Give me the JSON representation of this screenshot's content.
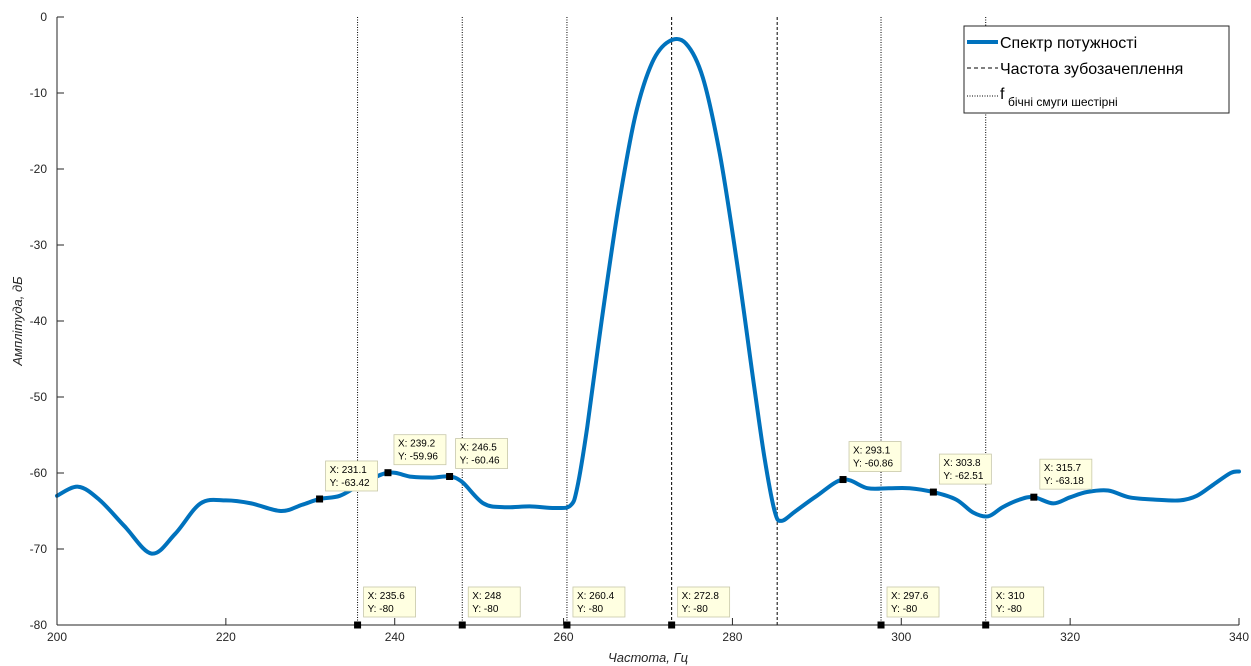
{
  "chart_data": {
    "type": "line",
    "title": "",
    "xlabel": "Частота, Гц",
    "ylabel": "Амплітуда, дБ",
    "xlim": [
      200,
      340
    ],
    "ylim": [
      -80,
      0
    ],
    "xticks": [
      200,
      220,
      240,
      260,
      280,
      300,
      320,
      340
    ],
    "yticks": [
      0,
      -10,
      -20,
      -30,
      -40,
      -50,
      -60,
      -70,
      -80
    ],
    "grid": false,
    "legend_position": "top-right",
    "series": [
      {
        "name": "Спектр потужності",
        "color": "#0072BD",
        "style": "solid",
        "x": [
          200,
          202.5,
          205,
          208,
          211.2,
          214,
          217,
          220,
          223,
          226.5,
          229,
          231.1,
          233.5,
          236,
          239.2,
          242,
          244.5,
          246.5,
          248,
          250.5,
          253,
          256,
          259,
          260.8,
          261.6,
          262.8,
          264.5,
          266.5,
          268.5,
          270.5,
          272.5,
          274.5,
          276.5,
          278.5,
          280.5,
          282.5,
          283.8,
          285,
          285.8,
          287.5,
          290,
          293.1,
          296,
          298.5,
          301,
          303.8,
          306.5,
          308.5,
          310.3,
          312,
          314,
          315.7,
          318,
          320,
          322,
          324.5,
          327,
          330,
          333,
          335,
          337,
          339,
          340
        ],
        "y": [
          -63.0,
          -61.8,
          -63.5,
          -67.0,
          -70.6,
          -68.0,
          -64.0,
          -63.6,
          -64.0,
          -65.0,
          -64.2,
          -63.42,
          -63.0,
          -61.5,
          -59.96,
          -60.5,
          -60.6,
          -60.46,
          -61.2,
          -64.0,
          -64.5,
          -64.4,
          -64.6,
          -64.3,
          -62.0,
          -54.0,
          -40.0,
          -25.0,
          -13.0,
          -6.0,
          -3.2,
          -3.5,
          -8.0,
          -18.0,
          -32.0,
          -48.0,
          -58.0,
          -65.0,
          -66.3,
          -65.0,
          -63.0,
          -60.86,
          -62.0,
          -62.0,
          -62.0,
          -62.51,
          -63.5,
          -65.2,
          -65.7,
          -64.5,
          -63.5,
          -63.18,
          -64.0,
          -63.2,
          -62.5,
          -62.3,
          -63.2,
          -63.5,
          -63.6,
          -63.0,
          -61.5,
          -60.0,
          -59.8
        ]
      },
      {
        "name": "Частота зубозачеплення",
        "style": "dashed",
        "x": [
          272.8,
          285.3
        ]
      },
      {
        "name_main": "f",
        "name_sub": "бічні смуги шестірні",
        "style": "dotted",
        "x": [
          235.6,
          248,
          260.4,
          297.6,
          310
        ]
      }
    ],
    "datatips": [
      {
        "x": 231.1,
        "y": -63.42,
        "line1": "X: 231.1",
        "line2": "Y: -63.42"
      },
      {
        "x": 239.2,
        "y": -59.96,
        "line1": "X: 239.2",
        "line2": "Y: -59.96"
      },
      {
        "x": 246.5,
        "y": -60.46,
        "line1": "X: 246.5",
        "line2": "Y: -60.46"
      },
      {
        "x": 293.1,
        "y": -60.86,
        "line1": "X: 293.1",
        "line2": "Y: -60.86"
      },
      {
        "x": 303.8,
        "y": -62.51,
        "line1": "X: 303.8",
        "line2": "Y: -62.51"
      },
      {
        "x": 315.7,
        "y": -63.18,
        "line1": "X: 315.7",
        "line2": "Y: -63.18"
      },
      {
        "x": 235.6,
        "y": -80,
        "line1": "X: 235.6",
        "line2": "Y: -80"
      },
      {
        "x": 248,
        "y": -80,
        "line1": "X: 248",
        "line2": "Y: -80"
      },
      {
        "x": 260.4,
        "y": -80,
        "line1": "X: 260.4",
        "line2": "Y: -80"
      },
      {
        "x": 272.8,
        "y": -80,
        "line1": "X: 272.8",
        "line2": "Y: -80"
      },
      {
        "x": 297.6,
        "y": -80,
        "line1": "X: 297.6",
        "line2": "Y: -80"
      },
      {
        "x": 310,
        "y": -80,
        "line1": "X: 310",
        "line2": "Y: -80"
      }
    ]
  }
}
